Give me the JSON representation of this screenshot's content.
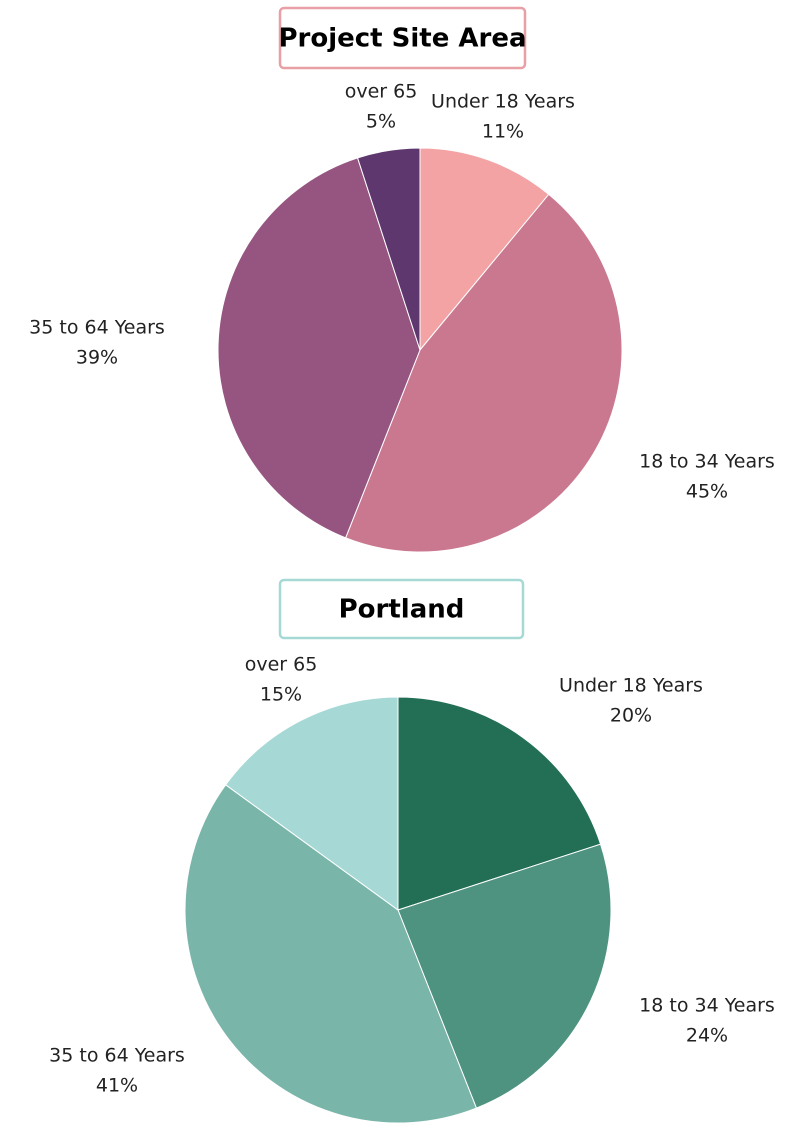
{
  "chart_data": [
    {
      "type": "pie",
      "title": "Project Site Area",
      "categories": [
        "Under 18 Years",
        "18 to 34 Years",
        "35 to 64 Years",
        "over 65"
      ],
      "values": [
        11,
        45,
        39,
        5
      ],
      "value_labels": [
        "11%",
        "45%",
        "39%",
        "5%"
      ],
      "colors": [
        "#f4a3a5",
        "#c97890",
        "#955580",
        "#5e376e"
      ],
      "title_border": "#e8a0a6"
    },
    {
      "type": "pie",
      "title": "Portland",
      "categories": [
        "Under 18 Years",
        "18 to 34 Years",
        "35 to 64 Years",
        "over 65"
      ],
      "values": [
        20,
        24,
        41,
        15
      ],
      "value_labels": [
        "20%",
        "24%",
        "41%",
        "15%"
      ],
      "colors": [
        "#236f56",
        "#4e937f",
        "#7ab5aa",
        "#a6d9d5"
      ],
      "title_border": "#a6d9d5"
    }
  ]
}
